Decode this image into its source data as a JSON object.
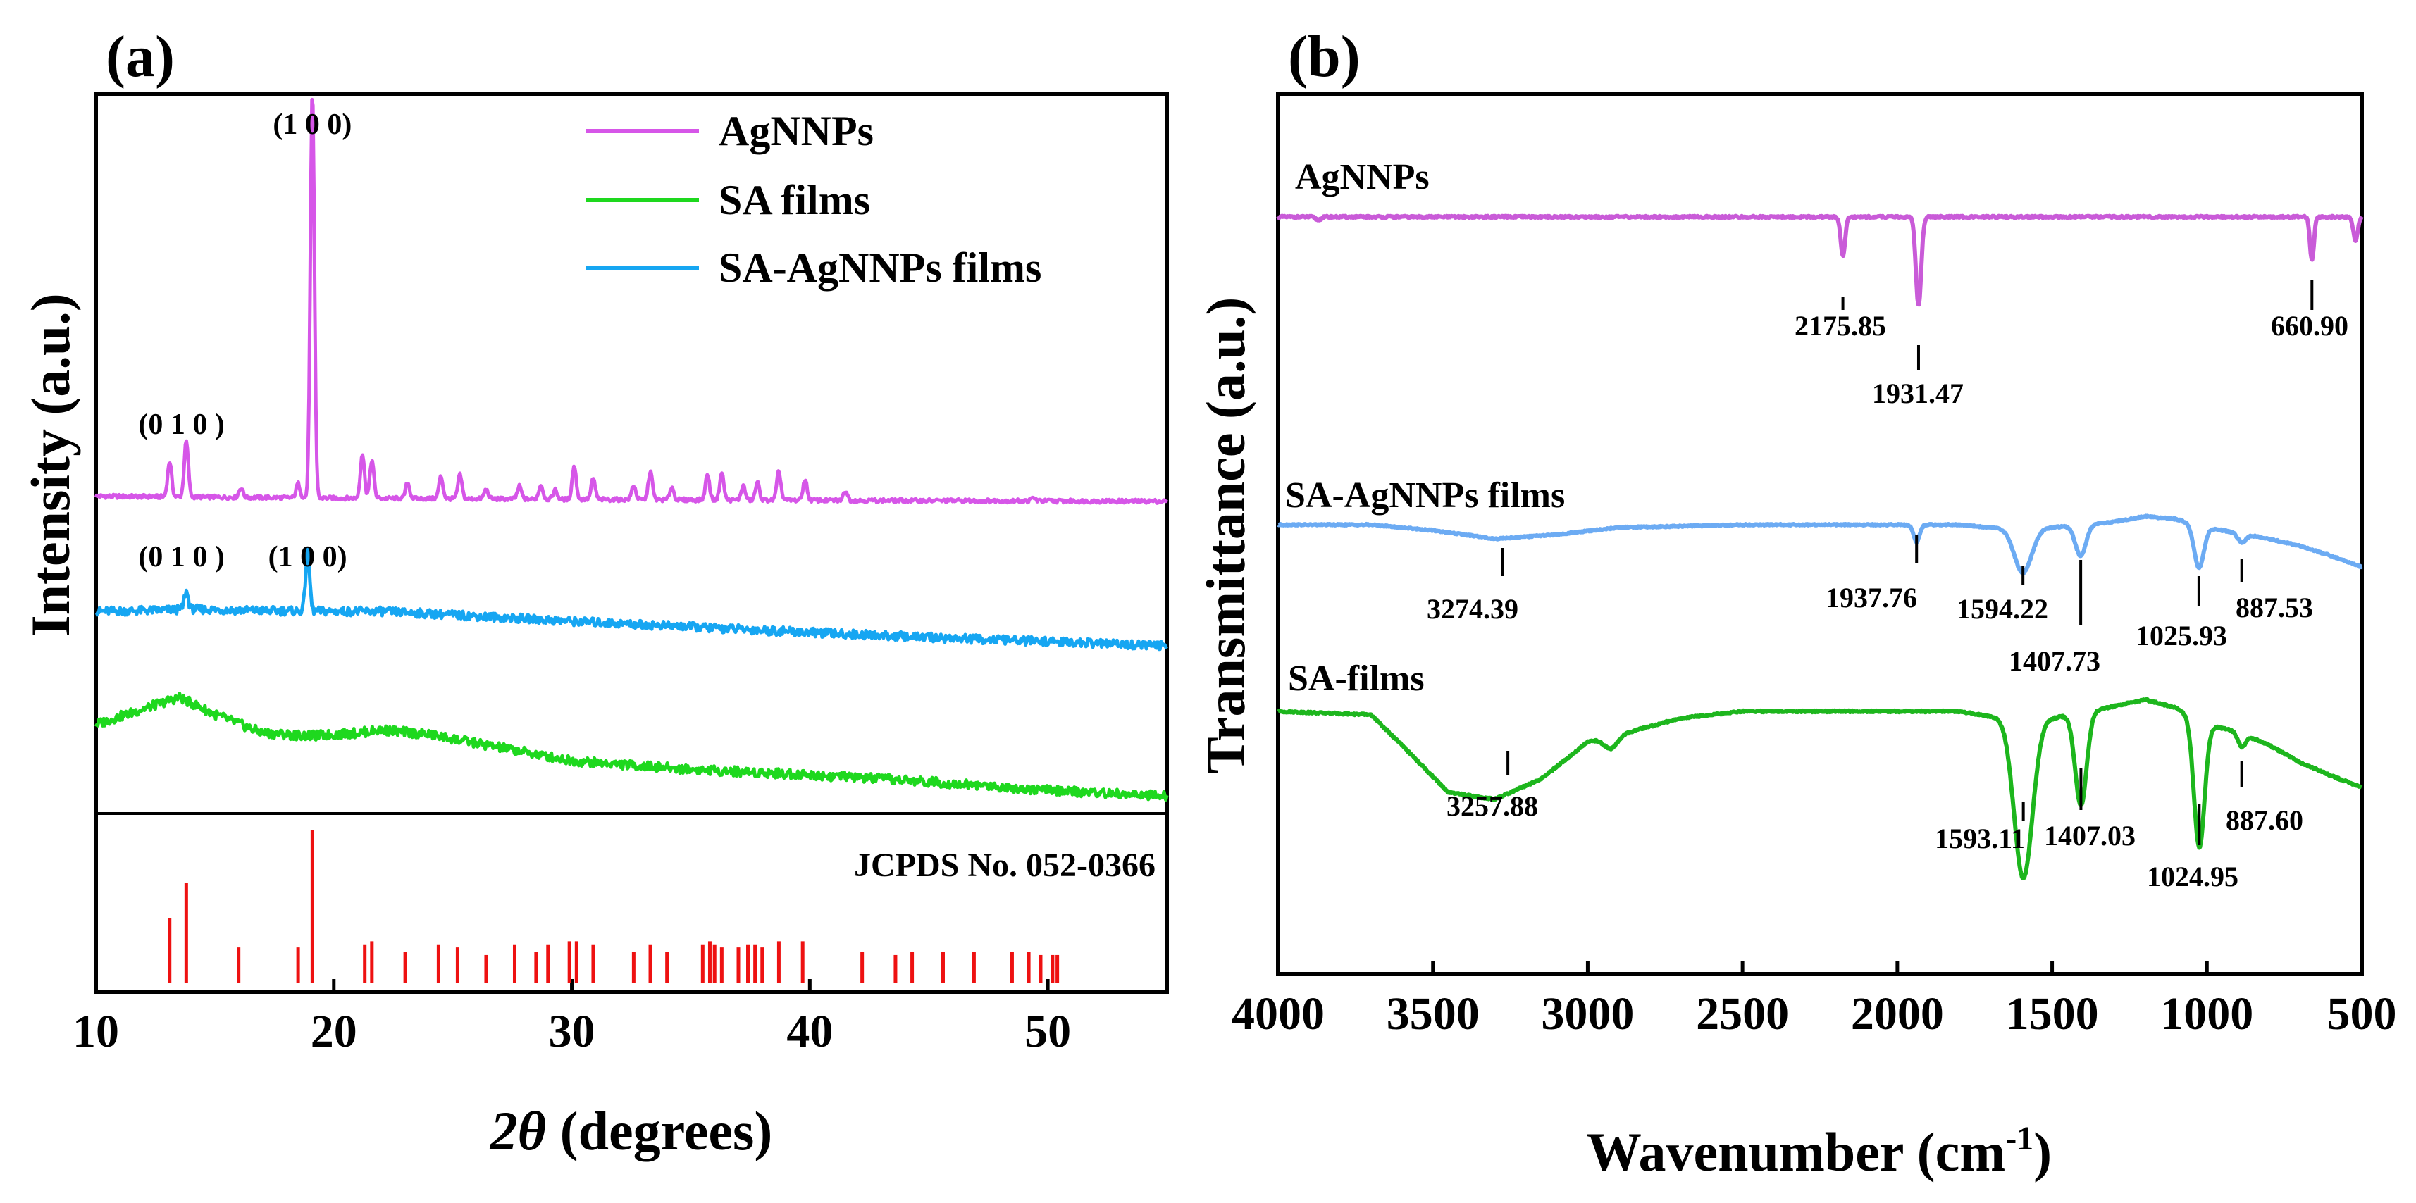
{
  "chart_data": [
    {
      "panel": "(a)",
      "type": "line",
      "title": "",
      "xlabel_italic": "2θ",
      "xlabel_rest": "(degrees)",
      "ylabel": "Intensity (a.u.)",
      "xlim": [
        10,
        55
      ],
      "xticks": [
        "10",
        "20",
        "30",
        "40",
        "50"
      ],
      "legend": [
        "AgNNPs",
        "SA films",
        "SA-AgNNPs films"
      ],
      "legend_position": "top-right",
      "colors": {
        "AgNNPs": "#d656e8",
        "SA films": "#1ed81e",
        "SA-AgNNPs films": "#16a6f2",
        "reference": "#ee1111"
      },
      "series": [
        {
          "name": "AgNNPs",
          "baseline_x": [
            10,
            20,
            30,
            40,
            50,
            55
          ],
          "baseline_y": [
            0.9,
            0.84,
            0.8,
            0.77,
            0.75,
            0.74
          ],
          "peaks": [
            {
              "x": 13.1,
              "h": 1.1
            },
            {
              "x": 13.8,
              "h": 1.75
            },
            {
              "x": 16.1,
              "h": 0.3
            },
            {
              "x": 18.5,
              "h": 0.45
            },
            {
              "x": 19.1,
              "h": 12.8
            },
            {
              "x": 21.2,
              "h": 1.4
            },
            {
              "x": 21.6,
              "h": 1.2
            },
            {
              "x": 23.1,
              "h": 0.5
            },
            {
              "x": 24.5,
              "h": 0.7
            },
            {
              "x": 25.3,
              "h": 0.75
            },
            {
              "x": 26.4,
              "h": 0.3
            },
            {
              "x": 27.8,
              "h": 0.4
            },
            {
              "x": 28.7,
              "h": 0.45
            },
            {
              "x": 29.3,
              "h": 0.3
            },
            {
              "x": 30.1,
              "h": 1.05
            },
            {
              "x": 30.9,
              "h": 0.65
            },
            {
              "x": 32.6,
              "h": 0.45
            },
            {
              "x": 33.3,
              "h": 0.9
            },
            {
              "x": 34.2,
              "h": 0.4
            },
            {
              "x": 35.7,
              "h": 0.8
            },
            {
              "x": 36.3,
              "h": 0.85
            },
            {
              "x": 37.2,
              "h": 0.45
            },
            {
              "x": 37.8,
              "h": 0.55
            },
            {
              "x": 38.7,
              "h": 0.9
            },
            {
              "x": 39.8,
              "h": 0.65
            },
            {
              "x": 41.5,
              "h": 0.3
            },
            {
              "x": 49.4,
              "h": 0.1
            }
          ]
        },
        {
          "name": "SA-AgNNPs films",
          "baseline_x": [
            10,
            12,
            14,
            17,
            20,
            22,
            25,
            30,
            35,
            40,
            45,
            50,
            55
          ],
          "baseline_y": [
            0.52,
            0.53,
            0.55,
            0.53,
            0.52,
            0.52,
            0.47,
            0.38,
            0.3,
            0.22,
            0.15,
            0.09,
            0.03
          ],
          "peaks": [
            {
              "x": 13.8,
              "h": 0.25
            },
            {
              "x": 18.9,
              "h": 0.85
            }
          ]
        },
        {
          "name": "SA films",
          "baseline_x": [
            10,
            11.5,
            13.5,
            15,
            17,
            19,
            21,
            22,
            24,
            27,
            30,
            35,
            40,
            45,
            50,
            55
          ],
          "baseline_y": [
            0.85,
            1.0,
            1.2,
            0.98,
            0.74,
            0.7,
            0.74,
            0.78,
            0.72,
            0.55,
            0.38,
            0.27,
            0.2,
            0.11,
            0.0,
            -0.08
          ],
          "peaks": []
        }
      ],
      "annotations": [
        {
          "text": "(1 0 0)",
          "x": 19.1
        },
        {
          "text": "(0 1 0 )",
          "x": 13.6
        },
        {
          "text": "(0 1 0 )",
          "x": 13.6
        },
        {
          "text": "(1 0 0)",
          "x": 18.9
        }
      ],
      "reference": {
        "label": "JCPDS No. 052-0366",
        "lines": [
          {
            "x": 13.1,
            "h": 0.42
          },
          {
            "x": 13.8,
            "h": 0.65
          },
          {
            "x": 16.0,
            "h": 0.23
          },
          {
            "x": 18.5,
            "h": 0.23
          },
          {
            "x": 19.1,
            "h": 1.0
          },
          {
            "x": 21.3,
            "h": 0.25
          },
          {
            "x": 21.6,
            "h": 0.27
          },
          {
            "x": 23.0,
            "h": 0.2
          },
          {
            "x": 24.4,
            "h": 0.25
          },
          {
            "x": 25.2,
            "h": 0.23
          },
          {
            "x": 26.4,
            "h": 0.18
          },
          {
            "x": 27.6,
            "h": 0.25
          },
          {
            "x": 28.5,
            "h": 0.2
          },
          {
            "x": 29.0,
            "h": 0.25
          },
          {
            "x": 29.9,
            "h": 0.27
          },
          {
            "x": 30.2,
            "h": 0.27
          },
          {
            "x": 30.9,
            "h": 0.25
          },
          {
            "x": 32.6,
            "h": 0.2
          },
          {
            "x": 33.3,
            "h": 0.25
          },
          {
            "x": 34.0,
            "h": 0.2
          },
          {
            "x": 35.5,
            "h": 0.25
          },
          {
            "x": 35.8,
            "h": 0.27
          },
          {
            "x": 36.0,
            "h": 0.25
          },
          {
            "x": 36.3,
            "h": 0.23
          },
          {
            "x": 37.0,
            "h": 0.23
          },
          {
            "x": 37.4,
            "h": 0.25
          },
          {
            "x": 37.7,
            "h": 0.25
          },
          {
            "x": 38.0,
            "h": 0.23
          },
          {
            "x": 38.7,
            "h": 0.27
          },
          {
            "x": 39.7,
            "h": 0.27
          },
          {
            "x": 42.2,
            "h": 0.2
          },
          {
            "x": 43.6,
            "h": 0.18
          },
          {
            "x": 44.3,
            "h": 0.2
          },
          {
            "x": 45.6,
            "h": 0.2
          },
          {
            "x": 46.9,
            "h": 0.2
          },
          {
            "x": 48.5,
            "h": 0.2
          },
          {
            "x": 49.2,
            "h": 0.2
          },
          {
            "x": 49.7,
            "h": 0.18
          },
          {
            "x": 50.2,
            "h": 0.18
          },
          {
            "x": 50.4,
            "h": 0.18
          }
        ]
      }
    },
    {
      "panel": "(b)",
      "type": "line",
      "title": "",
      "xlabel": "Wavenumber (cm",
      "xlabel_sup": "-1",
      "xlabel_close": ")",
      "ylabel": "Transmittance (a.u.)",
      "xlim": [
        4000,
        500
      ],
      "xticks": [
        "4000",
        "3500",
        "3000",
        "2500",
        "2000",
        "1500",
        "1000",
        "500"
      ],
      "series": [
        {
          "name": "AgNNPs",
          "label": "AgNNPs",
          "color": "#c95bd8",
          "baseline_x": [
            4000,
            3000,
            2000,
            1000,
            700,
            500
          ],
          "baseline_y": [
            0.0,
            0.0,
            0.0,
            0.0,
            0.0,
            0.0
          ],
          "bands": [
            {
              "x": 3870,
              "depth": 0.015,
              "width": 12
            },
            {
              "x": 2175.85,
              "depth": 0.2,
              "width": 10
            },
            {
              "x": 1931.47,
              "depth": 0.45,
              "width": 12
            },
            {
              "x": 660.9,
              "depth": 0.22,
              "width": 9
            },
            {
              "x": 520,
              "depth": 0.12,
              "width": 10
            }
          ],
          "peak_labels": [
            "2175.85",
            "1931.47",
            "660.90"
          ]
        },
        {
          "name": "SA-AgNNPs films",
          "label": "SA-AgNNPs films",
          "color": "#6cabf3",
          "baseline_x": [
            4000,
            3700,
            3500,
            3300,
            3100,
            2900,
            2500,
            2000,
            1800,
            1700,
            1500,
            1300,
            1200,
            1100,
            1000,
            900,
            800,
            700,
            600,
            500
          ],
          "baseline_y": [
            0.0,
            0.0,
            -0.04,
            -0.1,
            -0.07,
            -0.02,
            0.0,
            0.0,
            0.0,
            -0.02,
            -0.02,
            0.02,
            0.06,
            0.04,
            -0.02,
            -0.06,
            -0.1,
            -0.15,
            -0.22,
            -0.3
          ],
          "bands": [
            {
              "x": 1937.76,
              "depth": 0.12,
              "width": 14
            },
            {
              "x": 1594.22,
              "depth": 0.32,
              "width": 40
            },
            {
              "x": 1407.73,
              "depth": 0.22,
              "width": 24
            },
            {
              "x": 1025.93,
              "depth": 0.3,
              "width": 22
            },
            {
              "x": 887.53,
              "depth": 0.06,
              "width": 18
            }
          ],
          "peak_labels": [
            "3274.39",
            "1937.76",
            "1594.22",
            "1407.73",
            "1025.93",
            "887.53"
          ]
        },
        {
          "name": "SA-films",
          "label": "SA-films",
          "color": "#1db61d",
          "baseline_x": [
            4000,
            3700,
            3600,
            3450,
            3300,
            3150,
            3000,
            2900,
            2700,
            2500,
            2000,
            1800,
            1700,
            1500,
            1300,
            1200,
            1100,
            1000,
            900,
            800,
            700,
            600,
            500
          ],
          "baseline_y": [
            0.0,
            -0.02,
            -0.2,
            -0.48,
            -0.52,
            -0.4,
            -0.18,
            -0.14,
            -0.04,
            0.0,
            0.0,
            0.0,
            -0.03,
            -0.04,
            0.03,
            0.07,
            0.02,
            -0.08,
            -0.12,
            -0.2,
            -0.3,
            -0.38,
            -0.45
          ],
          "bands": [
            {
              "x": 2925,
              "depth": 0.07,
              "width": 30
            },
            {
              "x": 1593.11,
              "depth": 0.95,
              "width": 42
            },
            {
              "x": 1407.03,
              "depth": 0.55,
              "width": 26
            },
            {
              "x": 1024.95,
              "depth": 0.75,
              "width": 24
            },
            {
              "x": 887.6,
              "depth": 0.08,
              "width": 18
            }
          ],
          "peak_labels": [
            "3257.88",
            "1593.11",
            "1407.03",
            "1024.95",
            "887.60"
          ]
        }
      ]
    }
  ]
}
